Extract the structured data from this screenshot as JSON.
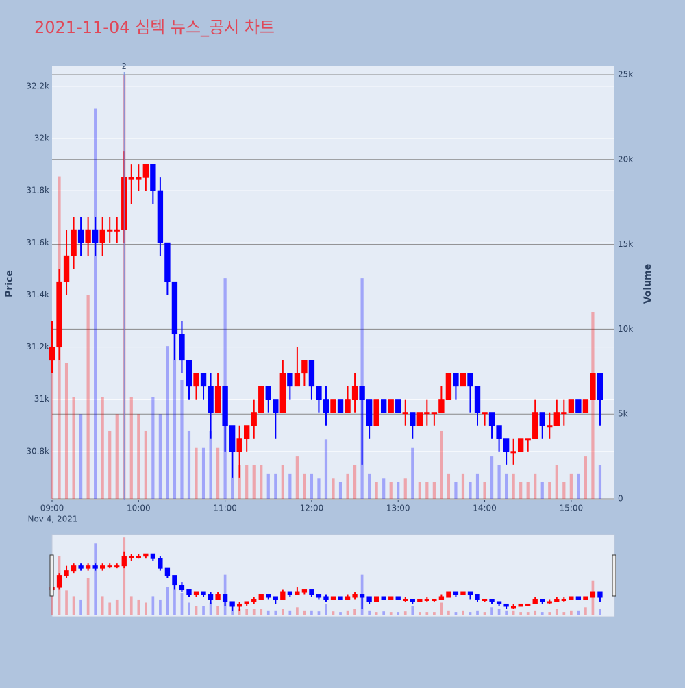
{
  "chart_data": {
    "type": "candlestick",
    "title": "2021-11-04 심텍 뉴스_공시 차트",
    "y_title": "Price",
    "y2_title": "Volume",
    "x_date_label": "Nov 4, 2021",
    "increasing_color": "#ff0000",
    "decreasing_color": "#0000ff",
    "grid": true,
    "rangeslider": true,
    "annotation": {
      "text": "2",
      "x": "2021-11-04 09:50"
    },
    "xlim": [
      "2021-11-04 09:00",
      "2021-11-04 15:30"
    ],
    "xticks": [
      {
        "value": "2021-11-04 09:00",
        "label": "09:00"
      },
      {
        "value": "2021-11-04 10:00",
        "label": "10:00"
      },
      {
        "value": "2021-11-04 11:00",
        "label": "11:00"
      },
      {
        "value": "2021-11-04 12:00",
        "label": "12:00"
      },
      {
        "value": "2021-11-04 13:00",
        "label": "13:00"
      },
      {
        "value": "2021-11-04 14:00",
        "label": "14:00"
      },
      {
        "value": "2021-11-04 15:00",
        "label": "15:00"
      }
    ],
    "ylim": [
      30613,
      32276
    ],
    "yticks": [
      {
        "value": 30800,
        "label": "30.8k"
      },
      {
        "value": 31000,
        "label": "31k"
      },
      {
        "value": 31200,
        "label": "31.2k"
      },
      {
        "value": 31400,
        "label": "31.4k"
      },
      {
        "value": 31600,
        "label": "31.6k"
      },
      {
        "value": 31800,
        "label": "31.8k"
      },
      {
        "value": 32000,
        "label": "32k"
      },
      {
        "value": 32200,
        "label": "32.2k"
      }
    ],
    "y2lim": [
      -81,
      25485
    ],
    "y2ticks": [
      0,
      {
        "value": 5000,
        "label": "5k"
      },
      {
        "value": 10000,
        "label": "10k"
      },
      {
        "value": 15000,
        "label": "15k"
      },
      {
        "value": 20000,
        "label": "20k"
      },
      {
        "value": 25000,
        "label": "25k"
      }
    ],
    "x": [
      "2021-11-04 09:00",
      "2021-11-04 09:05",
      "2021-11-04 09:10",
      "2021-11-04 09:15",
      "2021-11-04 09:20",
      "2021-11-04 09:25",
      "2021-11-04 09:30",
      "2021-11-04 09:35",
      "2021-11-04 09:40",
      "2021-11-04 09:45",
      "2021-11-04 09:50",
      "2021-11-04 09:55",
      "2021-11-04 10:00",
      "2021-11-04 10:05",
      "2021-11-04 10:10",
      "2021-11-04 10:15",
      "2021-11-04 10:20",
      "2021-11-04 10:25",
      "2021-11-04 10:30",
      "2021-11-04 10:35",
      "2021-11-04 10:40",
      "2021-11-04 10:45",
      "2021-11-04 10:50",
      "2021-11-04 10:55",
      "2021-11-04 11:00",
      "2021-11-04 11:05",
      "2021-11-04 11:10",
      "2021-11-04 11:15",
      "2021-11-04 11:20",
      "2021-11-04 11:25",
      "2021-11-04 11:30",
      "2021-11-04 11:35",
      "2021-11-04 11:40",
      "2021-11-04 11:45",
      "2021-11-04 11:50",
      "2021-11-04 11:55",
      "2021-11-04 12:00",
      "2021-11-04 12:05",
      "2021-11-04 12:10",
      "2021-11-04 12:15",
      "2021-11-04 12:20",
      "2021-11-04 12:25",
      "2021-11-04 12:30",
      "2021-11-04 12:35",
      "2021-11-04 12:40",
      "2021-11-04 12:45",
      "2021-11-04 12:50",
      "2021-11-04 12:55",
      "2021-11-04 13:00",
      "2021-11-04 13:05",
      "2021-11-04 13:10",
      "2021-11-04 13:15",
      "2021-11-04 13:20",
      "2021-11-04 13:25",
      "2021-11-04 13:30",
      "2021-11-04 13:35",
      "2021-11-04 13:40",
      "2021-11-04 13:45",
      "2021-11-04 13:50",
      "2021-11-04 13:55",
      "2021-11-04 14:00",
      "2021-11-04 14:05",
      "2021-11-04 14:10",
      "2021-11-04 14:15",
      "2021-11-04 14:20",
      "2021-11-04 14:25",
      "2021-11-04 14:30",
      "2021-11-04 14:35",
      "2021-11-04 14:40",
      "2021-11-04 14:45",
      "2021-11-04 14:50",
      "2021-11-04 14:55",
      "2021-11-04 15:00",
      "2021-11-04 15:05",
      "2021-11-04 15:10",
      "2021-11-04 15:15",
      "2021-11-04 15:20"
    ],
    "open": [
      31150,
      31200,
      31450,
      31550,
      31650,
      31600,
      31650,
      31600,
      31650,
      31650,
      31650,
      31850,
      31850,
      31850,
      31900,
      31800,
      31600,
      31450,
      31250,
      31150,
      31050,
      31100,
      31050,
      30950,
      31050,
      30900,
      30800,
      30850,
      30900,
      30950,
      31050,
      31000,
      30950,
      31100,
      31050,
      31100,
      31150,
      31050,
      31000,
      30950,
      31000,
      30950,
      31000,
      31050,
      31000,
      30900,
      31000,
      30950,
      31000,
      30950,
      30950,
      30900,
      30950,
      30950,
      30950,
      31000,
      31100,
      31050,
      31100,
      31050,
      30950,
      30950,
      30900,
      30850,
      30800,
      30800,
      30850,
      30850,
      30950,
      30900,
      30900,
      30950,
      30950,
      31000,
      30950,
      31000,
      31100
    ],
    "high": [
      31300,
      31500,
      31650,
      31700,
      31700,
      31700,
      31700,
      31700,
      31700,
      31700,
      31950,
      31900,
      31900,
      31900,
      31900,
      31850,
      31600,
      31450,
      31300,
      31150,
      31100,
      31100,
      31100,
      31100,
      31050,
      30900,
      30900,
      30900,
      31000,
      31050,
      31050,
      31000,
      31150,
      31100,
      31200,
      31150,
      31150,
      31050,
      31050,
      31000,
      31000,
      31050,
      31100,
      31050,
      31000,
      31000,
      31000,
      31000,
      31000,
      31000,
      30950,
      30950,
      31000,
      30950,
      31050,
      31100,
      31100,
      31100,
      31100,
      31050,
      30950,
      30950,
      30900,
      30850,
      30850,
      30850,
      30850,
      31000,
      30950,
      30950,
      31000,
      31000,
      31000,
      31000,
      31000,
      31100,
      31100
    ],
    "low": [
      31100,
      31150,
      31400,
      31500,
      31550,
      31550,
      31550,
      31550,
      31600,
      31600,
      31600,
      31750,
      31800,
      31800,
      31750,
      31550,
      31400,
      31150,
      31100,
      31000,
      31000,
      31000,
      30850,
      30950,
      30800,
      30700,
      30700,
      30800,
      30850,
      30950,
      30950,
      30850,
      30950,
      31000,
      31050,
      31050,
      31000,
      30950,
      30900,
      30950,
      30950,
      30950,
      30950,
      30750,
      30850,
      30900,
      30950,
      30950,
      30950,
      30900,
      30850,
      30900,
      30900,
      30900,
      30950,
      31000,
      31000,
      31050,
      30950,
      30900,
      30900,
      30850,
      30800,
      30750,
      30750,
      30800,
      30800,
      30850,
      30850,
      30850,
      30900,
      30900,
      30950,
      30950,
      30950,
      31000,
      30900
    ],
    "close": [
      31200,
      31450,
      31550,
      31650,
      31600,
      31650,
      31600,
      31650,
      31650,
      31650,
      31850,
      31850,
      31850,
      31900,
      31800,
      31600,
      31450,
      31250,
      31150,
      31050,
      31100,
      31050,
      30950,
      31050,
      30900,
      30800,
      30850,
      30900,
      30950,
      31050,
      31000,
      30950,
      31100,
      31050,
      31100,
      31150,
      31050,
      31000,
      30950,
      31000,
      30950,
      31000,
      31050,
      31000,
      30900,
      31000,
      30950,
      31000,
      30950,
      30950,
      30900,
      30950,
      30950,
      30950,
      31000,
      31100,
      31050,
      31100,
      31050,
      30950,
      30950,
      30900,
      30850,
      30800,
      30800,
      30850,
      30850,
      30950,
      30900,
      30900,
      30950,
      30950,
      31000,
      30950,
      31000,
      31100,
      31000
    ],
    "volume": [
      9000,
      19000,
      8000,
      6000,
      5000,
      12000,
      23000,
      6000,
      4000,
      5000,
      25000,
      6000,
      5000,
      4000,
      6000,
      5000,
      9000,
      11000,
      7000,
      4000,
      3000,
      3000,
      4000,
      3000,
      13000,
      3000,
      2000,
      2000,
      2000,
      2000,
      1500,
      1500,
      2000,
      1500,
      2500,
      1500,
      1500,
      1200,
      3500,
      1200,
      1000,
      1500,
      2000,
      13000,
      1500,
      1000,
      1200,
      1000,
      1000,
      1200,
      3000,
      1000,
      1000,
      1000,
      4000,
      1500,
      1000,
      1500,
      1000,
      1500,
      1000,
      2500,
      2000,
      1500,
      1500,
      1000,
      1000,
      1500,
      1000,
      1000,
      2000,
      1000,
      1500,
      1500,
      2500,
      11000,
      2000
    ]
  }
}
